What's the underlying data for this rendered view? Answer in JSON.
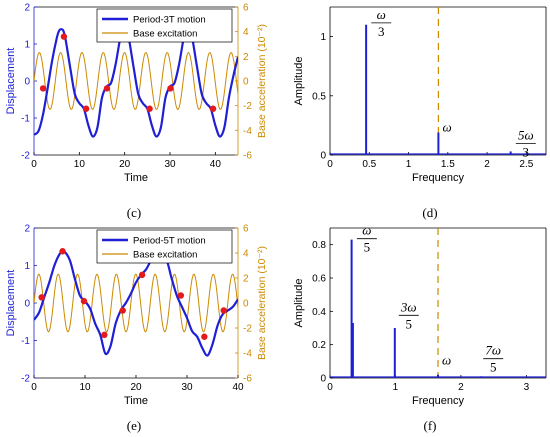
{
  "colors": {
    "blue": "#1f1fd6",
    "orange": "#cc8a00",
    "red": "#e41a1c",
    "black": "#000000"
  },
  "panel_labels": [
    "(c)",
    "(d)",
    "(e)",
    "(f)"
  ],
  "chart_data": [
    {
      "panel": "(c)",
      "type": "line",
      "xlabel": "Time",
      "ylabel": "Displacement",
      "y2label": "Base acceleration (10⁻²)",
      "xlim": [
        0,
        45
      ],
      "ylim": [
        -2,
        2
      ],
      "y2lim": [
        -6,
        6
      ],
      "xticks": [
        0,
        10,
        20,
        30,
        40
      ],
      "yticks": [
        -2,
        -1,
        0,
        1,
        2
      ],
      "y2ticks": [
        -6,
        -4,
        -2,
        0,
        2,
        4,
        6
      ],
      "legend": {
        "position": "top-left",
        "entries": [
          "Period-3T motion",
          "Base excitation"
        ]
      },
      "series": [
        {
          "name": "Period-3T motion",
          "axis": "left",
          "color": "#1f1fd6",
          "x": [
            0,
            1,
            2,
            3,
            4,
            5,
            5.5,
            6,
            6.5,
            7,
            8,
            9,
            10,
            11,
            12,
            13,
            14,
            15,
            16,
            17,
            18,
            19,
            19.5,
            20,
            20.5,
            21,
            22,
            23,
            24,
            25,
            26,
            27,
            28,
            29,
            30,
            31,
            32,
            33,
            33.5,
            34,
            34.5,
            35,
            36,
            37,
            38,
            39,
            40,
            41,
            42,
            43,
            44,
            45
          ],
          "y": [
            -1.45,
            -1.35,
            -0.9,
            -0.2,
            0.55,
            1.15,
            1.35,
            1.4,
            1.35,
            1.1,
            0.35,
            -0.35,
            -0.6,
            -0.75,
            -1.2,
            -1.5,
            -1.25,
            -0.45,
            -0.15,
            -0.05,
            0.45,
            1.15,
            1.35,
            1.4,
            1.35,
            1.1,
            0.35,
            -0.35,
            -0.6,
            -0.75,
            -1.2,
            -1.5,
            -1.25,
            -0.45,
            -0.15,
            -0.05,
            0.45,
            1.15,
            1.35,
            1.4,
            1.35,
            1.1,
            0.35,
            -0.35,
            -0.6,
            -0.75,
            -1.2,
            -1.5,
            -1.25,
            -0.45,
            0.15,
            0.65
          ]
        },
        {
          "name": "Base excitation",
          "axis": "right",
          "color": "#cc8a00",
          "kind": "sine",
          "amplitude": 2.3,
          "period": 4.7,
          "phase": 0
        }
      ],
      "markers": {
        "color": "#e41a1c",
        "x": [
          2,
          6.6,
          11.5,
          16.1,
          20.6,
          25.5,
          30.1,
          34.6,
          39.5
        ],
        "y": [
          -0.2,
          1.2,
          -0.75,
          -0.2,
          1.2,
          -0.75,
          -0.2,
          1.2,
          -0.75
        ]
      }
    },
    {
      "panel": "(d)",
      "type": "bar",
      "xlabel": "Frequency",
      "ylabel": "Amplitude",
      "xlim": [
        0,
        2.75
      ],
      "ylim": [
        0,
        1.25
      ],
      "xticks": [
        0,
        0.5,
        1,
        1.5,
        2,
        2.5
      ],
      "yticks": [
        0,
        0.5,
        1
      ],
      "x": [
        0.46,
        1.38,
        2.3
      ],
      "values": [
        1.1,
        0.19,
        0.03
      ],
      "dashed_line_x": 1.38,
      "annotations": [
        {
          "num": "ω",
          "den": "3",
          "x": 0.5,
          "y": 1.15
        },
        {
          "text": "ω",
          "x": 1.44,
          "y": 0.2
        },
        {
          "num": "5ω",
          "den": "3",
          "x": 2.34,
          "y": 0.13
        }
      ]
    },
    {
      "panel": "(e)",
      "type": "line",
      "xlabel": "Time",
      "ylabel": "Displacement",
      "y2label": "Base acceleration (10⁻²)",
      "xlim": [
        0,
        40
      ],
      "ylim": [
        -2,
        2
      ],
      "y2lim": [
        -6,
        6
      ],
      "xticks": [
        0,
        10,
        20,
        30,
        40
      ],
      "yticks": [
        -2,
        -1,
        0,
        1,
        2
      ],
      "y2ticks": [
        -6,
        -4,
        -2,
        0,
        2,
        4,
        6
      ],
      "legend": {
        "position": "top-left",
        "entries": [
          "Period-5T motion",
          "Base excitation"
        ]
      },
      "series": [
        {
          "name": "Period-5T motion",
          "axis": "left",
          "color": "#1f1fd6",
          "x": [
            0,
            1,
            2,
            3,
            4,
            5,
            5.8,
            7,
            8,
            9,
            10,
            11,
            12,
            13,
            14,
            15,
            16,
            17,
            18,
            19,
            20,
            21,
            22,
            23,
            24,
            24.8,
            26,
            27,
            28,
            29,
            30,
            31,
            32,
            33,
            34,
            35,
            36,
            37,
            38,
            39,
            40
          ],
          "y": [
            -0.45,
            -0.25,
            0.15,
            0.55,
            1.0,
            1.3,
            1.38,
            1.15,
            0.65,
            0.2,
            0.05,
            -0.15,
            -0.55,
            -0.85,
            -1.35,
            -1.15,
            -0.55,
            -0.2,
            0.0,
            0.25,
            0.55,
            0.75,
            0.9,
            1.15,
            1.3,
            1.38,
            1.15,
            0.65,
            0.2,
            -0.1,
            -0.4,
            -0.75,
            -0.9,
            -1.2,
            -1.4,
            -1.1,
            -0.6,
            -0.3,
            -0.2,
            -0.1,
            0.1
          ]
        },
        {
          "name": "Base excitation",
          "axis": "right",
          "color": "#cc8a00",
          "kind": "sine",
          "amplitude": 2.3,
          "period": 3.8,
          "phase": 0
        }
      ],
      "markers": {
        "color": "#e41a1c",
        "x": [
          1.5,
          5.6,
          9.8,
          13.8,
          17.4,
          21.2,
          24.8,
          28.8,
          33.4,
          37.2
        ],
        "y": [
          0.15,
          1.38,
          0.05,
          -0.85,
          -0.2,
          0.75,
          1.38,
          0.2,
          -0.9,
          -0.2
        ]
      }
    },
    {
      "panel": "(f)",
      "type": "bar",
      "xlabel": "Frequency",
      "ylabel": "Amplitude",
      "xlim": [
        0,
        3.3
      ],
      "ylim": [
        0,
        0.9
      ],
      "xticks": [
        0,
        1,
        2,
        3
      ],
      "yticks": [
        0,
        0.2,
        0.4,
        0.6,
        0.8
      ],
      "x": [
        0.33,
        0.35,
        0.99,
        1.65,
        2.31
      ],
      "values": [
        0.83,
        0.33,
        0.3,
        0.02,
        0.01
      ],
      "dashed_line_x": 1.65,
      "annotations": [
        {
          "num": "ω",
          "den": "5",
          "x": 0.38,
          "y": 0.86
        },
        {
          "num": "3ω",
          "den": "5",
          "x": 1.02,
          "y": 0.4
        },
        {
          "text": "ω",
          "x": 1.72,
          "y": 0.08
        },
        {
          "num": "7ω",
          "den": "5",
          "x": 2.31,
          "y": 0.14
        }
      ]
    }
  ]
}
